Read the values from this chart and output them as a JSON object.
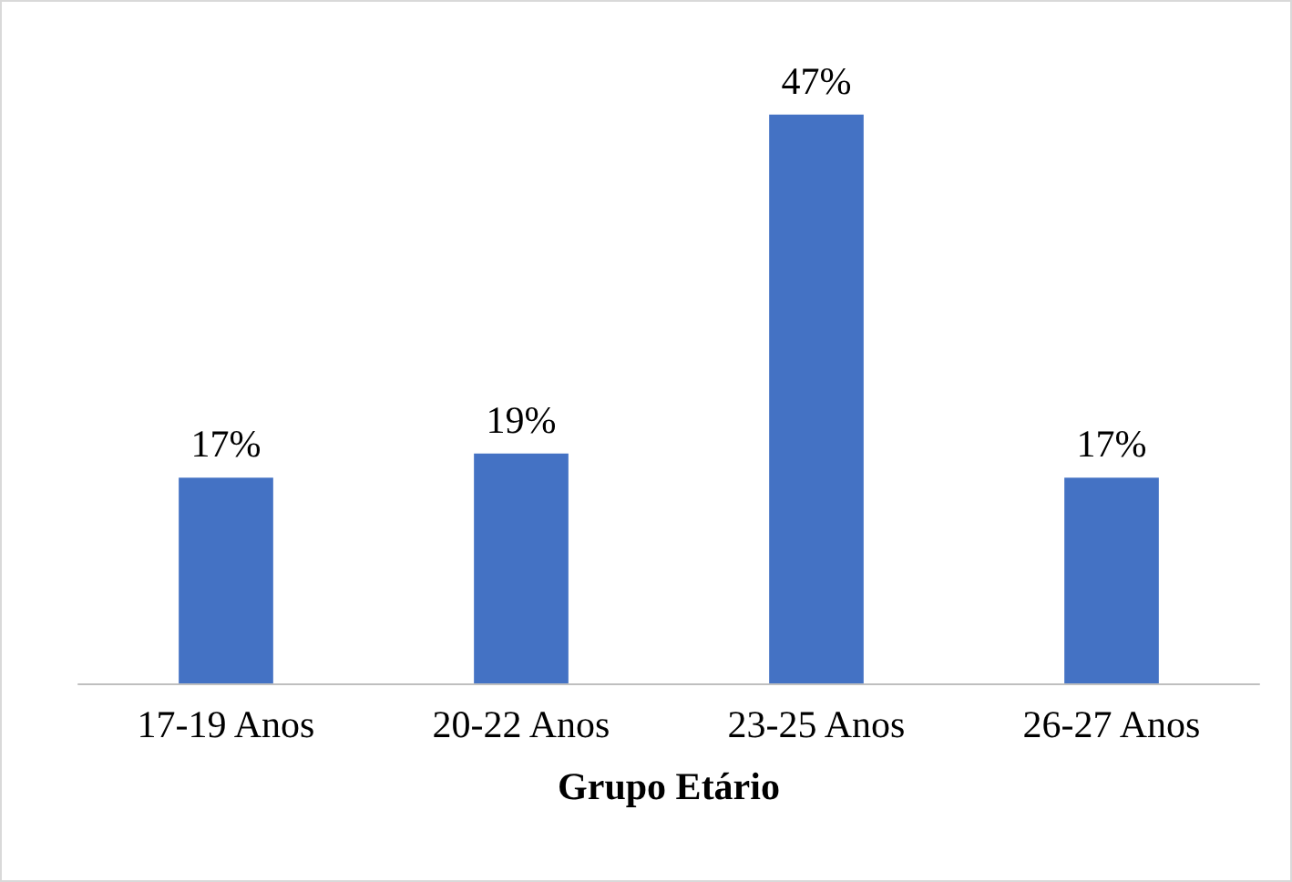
{
  "chart_data": {
    "type": "bar",
    "xlabel": "Grupo Etário",
    "categories": [
      "17-19 Anos",
      "20-22 Anos",
      "23-25 Anos",
      "26-27 Anos"
    ],
    "values": [
      17,
      19,
      47,
      17
    ],
    "value_labels": [
      "17%",
      "19%",
      "47%",
      "17%"
    ],
    "color": "#4472c4"
  }
}
